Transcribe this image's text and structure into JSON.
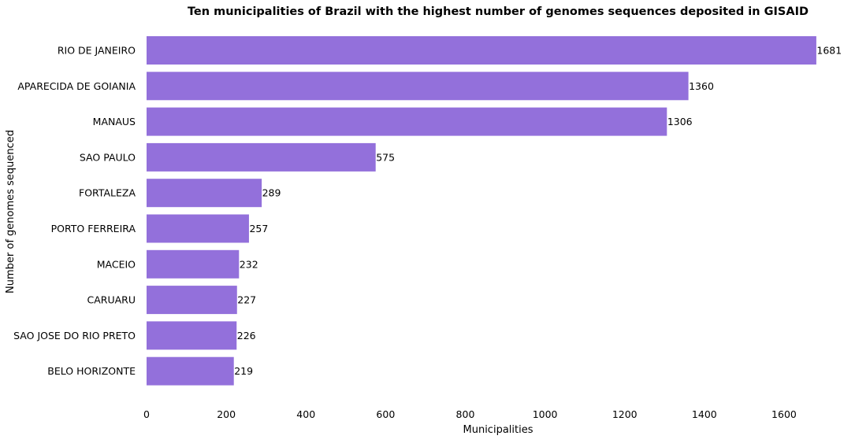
{
  "chart_data": {
    "type": "bar",
    "orientation": "horizontal",
    "title": "Ten municipalities of Brazil with the highest number of genomes sequences deposited in GISAID",
    "xlabel": "Municipalities",
    "ylabel": "Number of genomes sequenced",
    "categories": [
      "RIO DE JANEIRO",
      "APARECIDA DE GOIANIA",
      "MANAUS",
      "SAO PAULO",
      "FORTALEZA",
      "PORTO FERREIRA",
      "MACEIO",
      "CARUARU",
      "SAO JOSE DO RIO PRETO",
      "BELO HORIZONTE"
    ],
    "values": [
      1681,
      1360,
      1306,
      575,
      289,
      257,
      232,
      227,
      226,
      219
    ],
    "xlim": [
      0,
      1700
    ],
    "xticks": [
      0,
      200,
      400,
      600,
      800,
      1000,
      1200,
      1400,
      1600
    ],
    "grid": false,
    "bar_color": "#9370DB"
  }
}
